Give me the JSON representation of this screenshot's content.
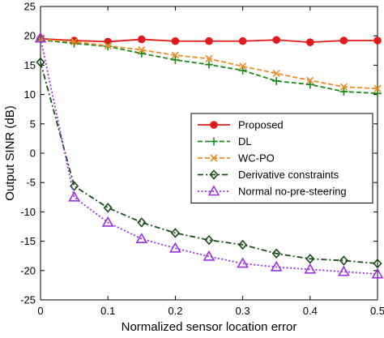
{
  "chart_data": {
    "type": "line",
    "title": "",
    "xlabel": "Normalized sensor location error",
    "ylabel": "Output SINR (dB)",
    "xlim": [
      0,
      0.5
    ],
    "ylim": [
      -25,
      25
    ],
    "xticks": [
      0,
      0.1,
      0.2,
      0.3,
      0.4,
      0.5
    ],
    "xtick_labels": [
      "0",
      "0.1",
      "0.2",
      "0.3",
      "0.4",
      "0.5"
    ],
    "yticks": [
      -25,
      -20,
      -15,
      -10,
      -5,
      0,
      5,
      10,
      15,
      20,
      25
    ],
    "ytick_labels": [
      "-25",
      "-20",
      "-15",
      "-10",
      "-5",
      "0",
      "5",
      "10",
      "15",
      "20",
      "25"
    ],
    "grid": false,
    "legend_position": "center-right",
    "x": [
      0,
      0.05,
      0.1,
      0.15,
      0.2,
      0.25,
      0.3,
      0.35,
      0.4,
      0.45,
      0.5
    ],
    "series": [
      {
        "name": "Proposed",
        "color": "#e31a1c",
        "marker": "circle",
        "dash": "solid",
        "values": [
          19.5,
          19.2,
          19.0,
          19.4,
          19.1,
          19.1,
          19.1,
          19.3,
          18.9,
          19.2,
          19.2
        ]
      },
      {
        "name": "DL",
        "color": "#1a8a1a",
        "marker": "plus",
        "dash": "dashed",
        "values": [
          19.3,
          18.7,
          18.2,
          17.0,
          15.9,
          15.1,
          14.1,
          12.3,
          11.7,
          10.5,
          10.2
        ]
      },
      {
        "name": "WC-PO",
        "color": "#f08a24",
        "marker": "x",
        "dash": "dashed",
        "values": [
          19.4,
          19.0,
          18.3,
          17.6,
          16.7,
          16.1,
          14.8,
          13.6,
          12.4,
          11.3,
          11.0
        ]
      },
      {
        "name": "Derivative constraints",
        "color": "#1a4d1a",
        "marker": "diamond",
        "dash": "dashdot",
        "values": [
          15.5,
          -5.6,
          -9.3,
          -11.8,
          -13.6,
          -14.8,
          -15.6,
          -17.1,
          -18.0,
          -18.3,
          -18.8
        ]
      },
      {
        "name": "Normal no-pre-steering",
        "color": "#9b30e0",
        "marker": "triangle",
        "dash": "dotted",
        "values": [
          19.6,
          -7.5,
          -11.8,
          -14.6,
          -16.2,
          -17.6,
          -18.8,
          -19.4,
          -19.8,
          -20.2,
          -20.6
        ]
      }
    ]
  }
}
